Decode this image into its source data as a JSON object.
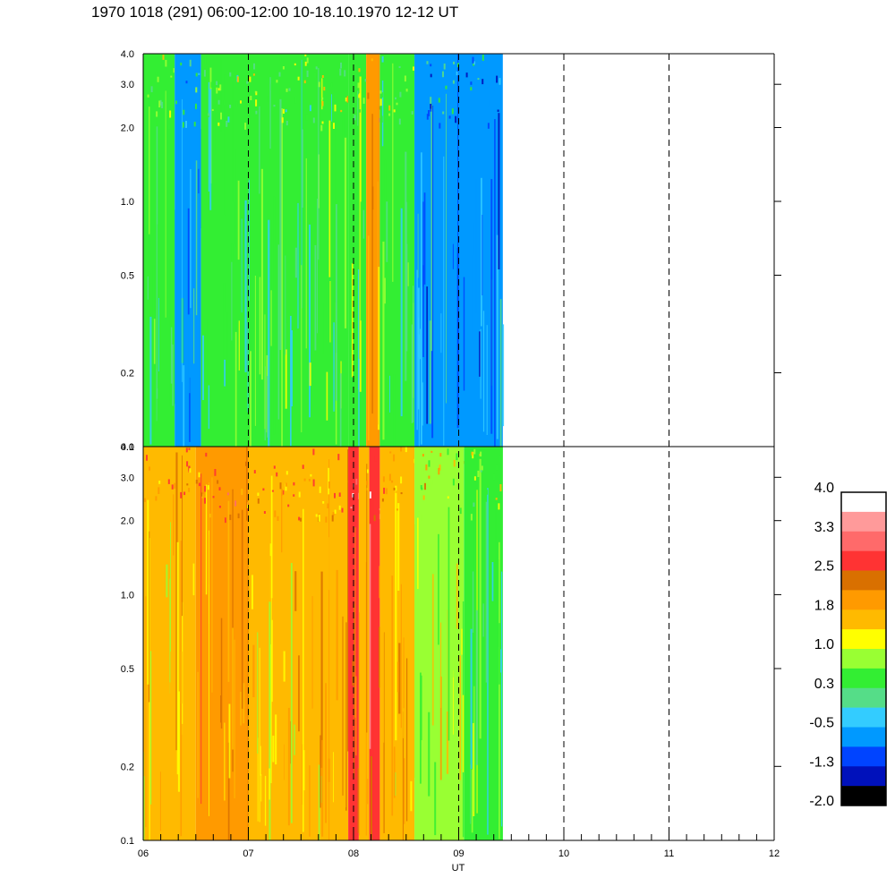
{
  "chart_data": {
    "type": "heatmap",
    "title": "1970 1018 (291) 06:00-12:00 10-18.10.1970  12-12 UT",
    "xlabel": "UT",
    "x_ticks": [
      "06",
      "07",
      "08",
      "09",
      "10",
      "11",
      "12"
    ],
    "xlim": [
      6,
      12
    ],
    "data_end_hour": 9.42,
    "y_scale": "log",
    "ylim": [
      0.1,
      4.0
    ],
    "y_ticks": [
      {
        "value": 0.1,
        "label": "0.1"
      },
      {
        "value": 0.2,
        "label": "0.2"
      },
      {
        "value": 0.5,
        "label": "0.5"
      },
      {
        "value": 1.0,
        "label": "1.0"
      },
      {
        "value": 2.0,
        "label": "2.0"
      },
      {
        "value": 3.0,
        "label": "3.0"
      },
      {
        "value": 4.0,
        "label": "4.0"
      }
    ],
    "hour_gridlines": "dashed",
    "panels": [
      {
        "name": "upper",
        "bands": [
          {
            "from": 6.0,
            "to": 6.3,
            "level": 0.3
          },
          {
            "from": 6.3,
            "to": 6.55,
            "level": -0.5
          },
          {
            "from": 6.55,
            "to": 7.0,
            "level": 0.3
          },
          {
            "from": 7.0,
            "to": 7.6,
            "level": 0.3
          },
          {
            "from": 7.6,
            "to": 7.95,
            "level": 0.6
          },
          {
            "from": 7.95,
            "to": 8.12,
            "level": 0.3
          },
          {
            "from": 8.12,
            "to": 8.25,
            "level": 1.8
          },
          {
            "from": 8.25,
            "to": 8.58,
            "level": 0.3
          },
          {
            "from": 8.58,
            "to": 9.42,
            "level": -0.8
          }
        ]
      },
      {
        "name": "lower",
        "bands": [
          {
            "from": 6.0,
            "to": 6.5,
            "level": 1.6
          },
          {
            "from": 6.5,
            "to": 7.0,
            "level": 1.8
          },
          {
            "from": 7.0,
            "to": 7.95,
            "level": 1.6
          },
          {
            "from": 7.95,
            "to": 8.05,
            "level": 2.6
          },
          {
            "from": 8.05,
            "to": 8.15,
            "level": 1.6
          },
          {
            "from": 8.15,
            "to": 8.25,
            "level": 2.6
          },
          {
            "from": 8.25,
            "to": 8.58,
            "level": 1.6
          },
          {
            "from": 8.58,
            "to": 9.05,
            "level": 1.0
          },
          {
            "from": 9.05,
            "to": 9.42,
            "level": 0.4
          }
        ]
      }
    ],
    "colorbar": {
      "labels": [
        "4.0",
        "3.3",
        "2.5",
        "1.8",
        "1.0",
        "0.3",
        "-0.5",
        "-1.3",
        "-2.0"
      ],
      "colors": [
        "#ffffff",
        "#ff9a9a",
        "#ff6a6a",
        "#ff3333",
        "#d97000",
        "#ff9a00",
        "#ffba00",
        "#ffff00",
        "#99ff33",
        "#33ee33",
        "#55dd88",
        "#33ccff",
        "#0099ff",
        "#0044ff",
        "#0011bb",
        "#000000"
      ],
      "min": -2.0,
      "max": 4.0
    }
  }
}
